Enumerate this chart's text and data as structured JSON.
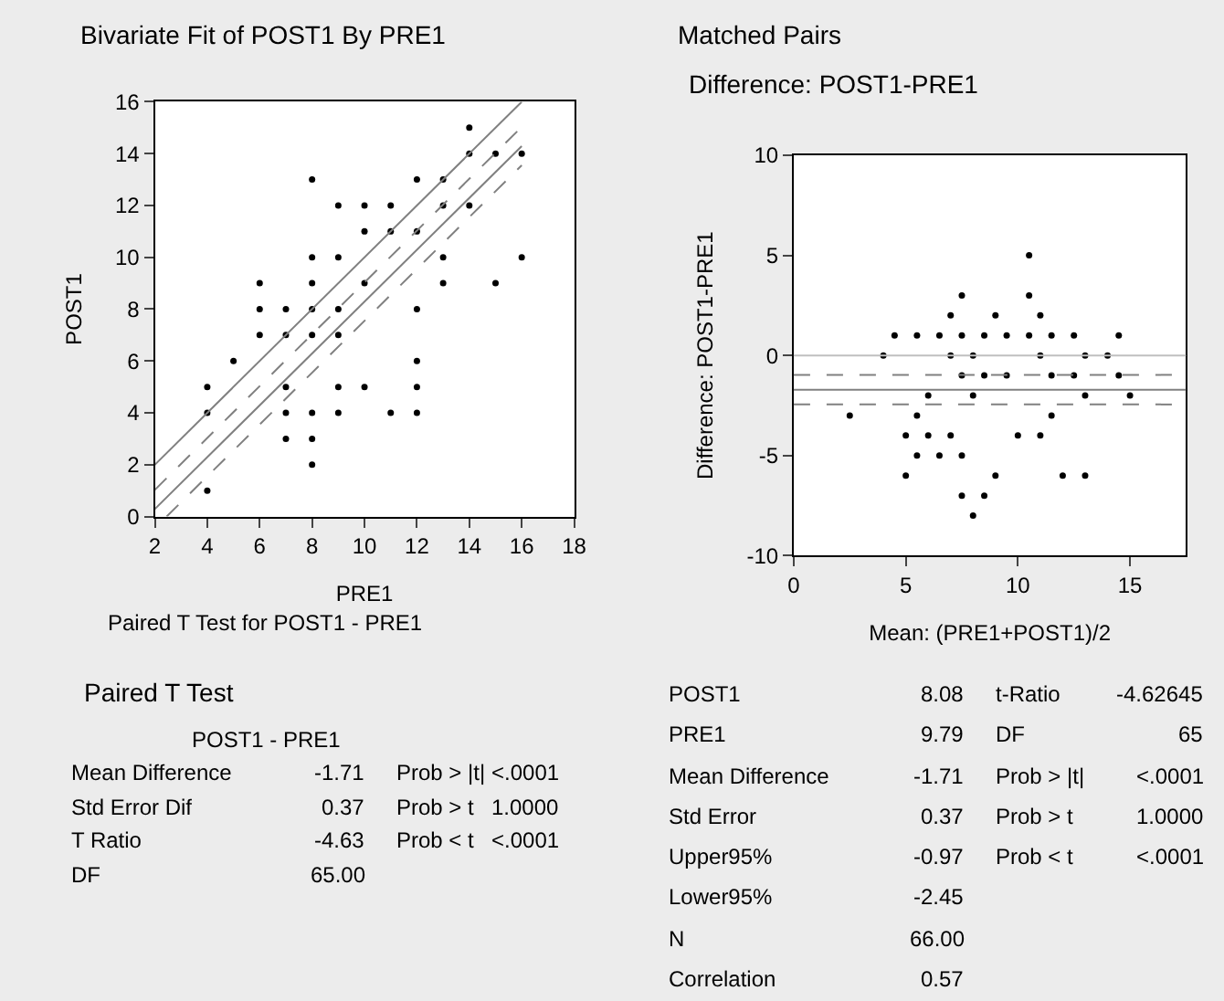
{
  "chart_data": [
    {
      "type": "scatter",
      "title": "Bivariate Fit of POST1 By PRE1",
      "xlabel": "PRE1",
      "ylabel": "POST1",
      "xlim": [
        2,
        18
      ],
      "ylim": [
        0,
        16
      ],
      "xticks": [
        2,
        4,
        6,
        8,
        10,
        12,
        14,
        16,
        18
      ],
      "yticks": [
        0,
        2,
        4,
        6,
        8,
        10,
        12,
        14,
        16
      ],
      "grid": false,
      "annotations": [
        "Paired T Test for POST1 - PRE1"
      ],
      "series": [
        {
          "type": "scatter",
          "marker": "circle",
          "color": "#000000",
          "x": [
            4,
            4,
            4,
            5,
            6,
            6,
            6,
            7,
            7,
            7,
            7,
            7,
            8,
            8,
            8,
            8,
            8,
            8,
            8,
            8,
            9,
            9,
            9,
            9,
            9,
            9,
            10,
            10,
            10,
            10,
            11,
            11,
            11,
            12,
            12,
            12,
            12,
            12,
            12,
            13,
            13,
            13,
            13,
            14,
            14,
            14,
            15,
            15,
            16,
            16
          ],
          "values": [
            5,
            4,
            1,
            6,
            9,
            8,
            7,
            8,
            7,
            5,
            4,
            3,
            13,
            10,
            9,
            8,
            7,
            4,
            3,
            2,
            12,
            10,
            8,
            7,
            5,
            4,
            12,
            11,
            9,
            5,
            12,
            11,
            4,
            13,
            11,
            8,
            6,
            5,
            4,
            13,
            12,
            10,
            9,
            15,
            14,
            12,
            14,
            9,
            14,
            10
          ]
        },
        {
          "type": "line",
          "marker": "none",
          "color": "#808080",
          "line_style": "solid",
          "x": [
            2,
            16
          ],
          "values": [
            2,
            16
          ]
        },
        {
          "type": "line",
          "marker": "none",
          "color": "#808080",
          "line_style": "dashed",
          "x": [
            2,
            16
          ],
          "values": [
            1.03,
            15.03
          ]
        },
        {
          "type": "line",
          "marker": "none",
          "color": "#808080",
          "line_style": "solid",
          "x": [
            2,
            16
          ],
          "values": [
            0.29,
            14.29
          ]
        },
        {
          "type": "line",
          "marker": "none",
          "color": "#808080",
          "line_style": "dashed",
          "x": [
            2.45,
            16
          ],
          "values": [
            0,
            13.55
          ]
        }
      ]
    },
    {
      "type": "scatter",
      "title": "Matched Pairs",
      "subtitle": "Difference: POST1-PRE1",
      "xlabel": "Mean: (PRE1+POST1)/2",
      "ylabel": "Difference: POST1-PRE1",
      "xlim": [
        0,
        17.5
      ],
      "ylim": [
        -10,
        10
      ],
      "xticks": [
        0,
        5,
        10,
        15
      ],
      "yticks": [
        -10,
        -5,
        0,
        5,
        10
      ],
      "grid": false,
      "marker": "circle",
      "ref_lines": [
        {
          "axis": "y",
          "value": 0,
          "color": "#c0c0c0",
          "line_style": "solid"
        },
        {
          "axis": "y",
          "value": -0.97,
          "color": "#808080",
          "line_style": "dashed"
        },
        {
          "axis": "y",
          "value": -1.71,
          "color": "#808080",
          "line_style": "solid"
        },
        {
          "axis": "y",
          "value": -2.45,
          "color": "#808080",
          "line_style": "dashed"
        }
      ],
      "series": [
        {
          "type": "scatter",
          "color": "#000000",
          "x": [
            2.5,
            4,
            4.5,
            5,
            5,
            5.5,
            5.5,
            5.5,
            6,
            6,
            6.5,
            6.5,
            7,
            7,
            7,
            7.5,
            7.5,
            7.5,
            7.5,
            7.5,
            8,
            8,
            8,
            8.5,
            8.5,
            8.5,
            9,
            9,
            9.5,
            9.5,
            10,
            10.5,
            10.5,
            10.5,
            11,
            11,
            11,
            11.5,
            11.5,
            11.5,
            12,
            12.5,
            12.5,
            13,
            13,
            13,
            14,
            14.5,
            14.5,
            15
          ],
          "values": [
            -3,
            0,
            1,
            -4,
            -6,
            1,
            -3,
            -5,
            -2,
            -4,
            1,
            -5,
            2,
            0,
            -4,
            3,
            1,
            -1,
            -5,
            -7,
            0,
            -2,
            -8,
            1,
            -1,
            -7,
            2,
            -6,
            1,
            -1,
            -4,
            5,
            3,
            1,
            2,
            0,
            -4,
            1,
            -1,
            -3,
            -6,
            1,
            -1,
            0,
            -2,
            -6,
            0,
            1,
            -1,
            -2
          ]
        }
      ]
    },
    {
      "type": "other",
      "title": "Paired T Test",
      "subtitle": "POST1 - PRE1",
      "annotations": [
        "Mean Difference",
        "Std Error Dif",
        "T Ratio",
        "DF",
        "-1.71",
        "0.37",
        "-4.63",
        "65.00",
        "Prob > |t|",
        "Prob > t",
        "Prob < t",
        "<.0001",
        "1.0000",
        "<.0001"
      ]
    },
    {
      "type": "other",
      "annotations": [
        "POST1",
        "PRE1",
        "Mean Difference",
        "Std Error",
        "Upper95%",
        "Lower95%",
        "N",
        "Correlation",
        "8.08",
        "9.79",
        "-1.71",
        "0.37",
        "-0.97",
        "-2.45",
        "66.00",
        "0.57",
        "t-Ratio",
        "DF",
        "Prob > |t|",
        "Prob > t",
        "Prob < t",
        "-4.62645",
        "65",
        "<.0001",
        "1.0000",
        "<.0001"
      ]
    }
  ]
}
